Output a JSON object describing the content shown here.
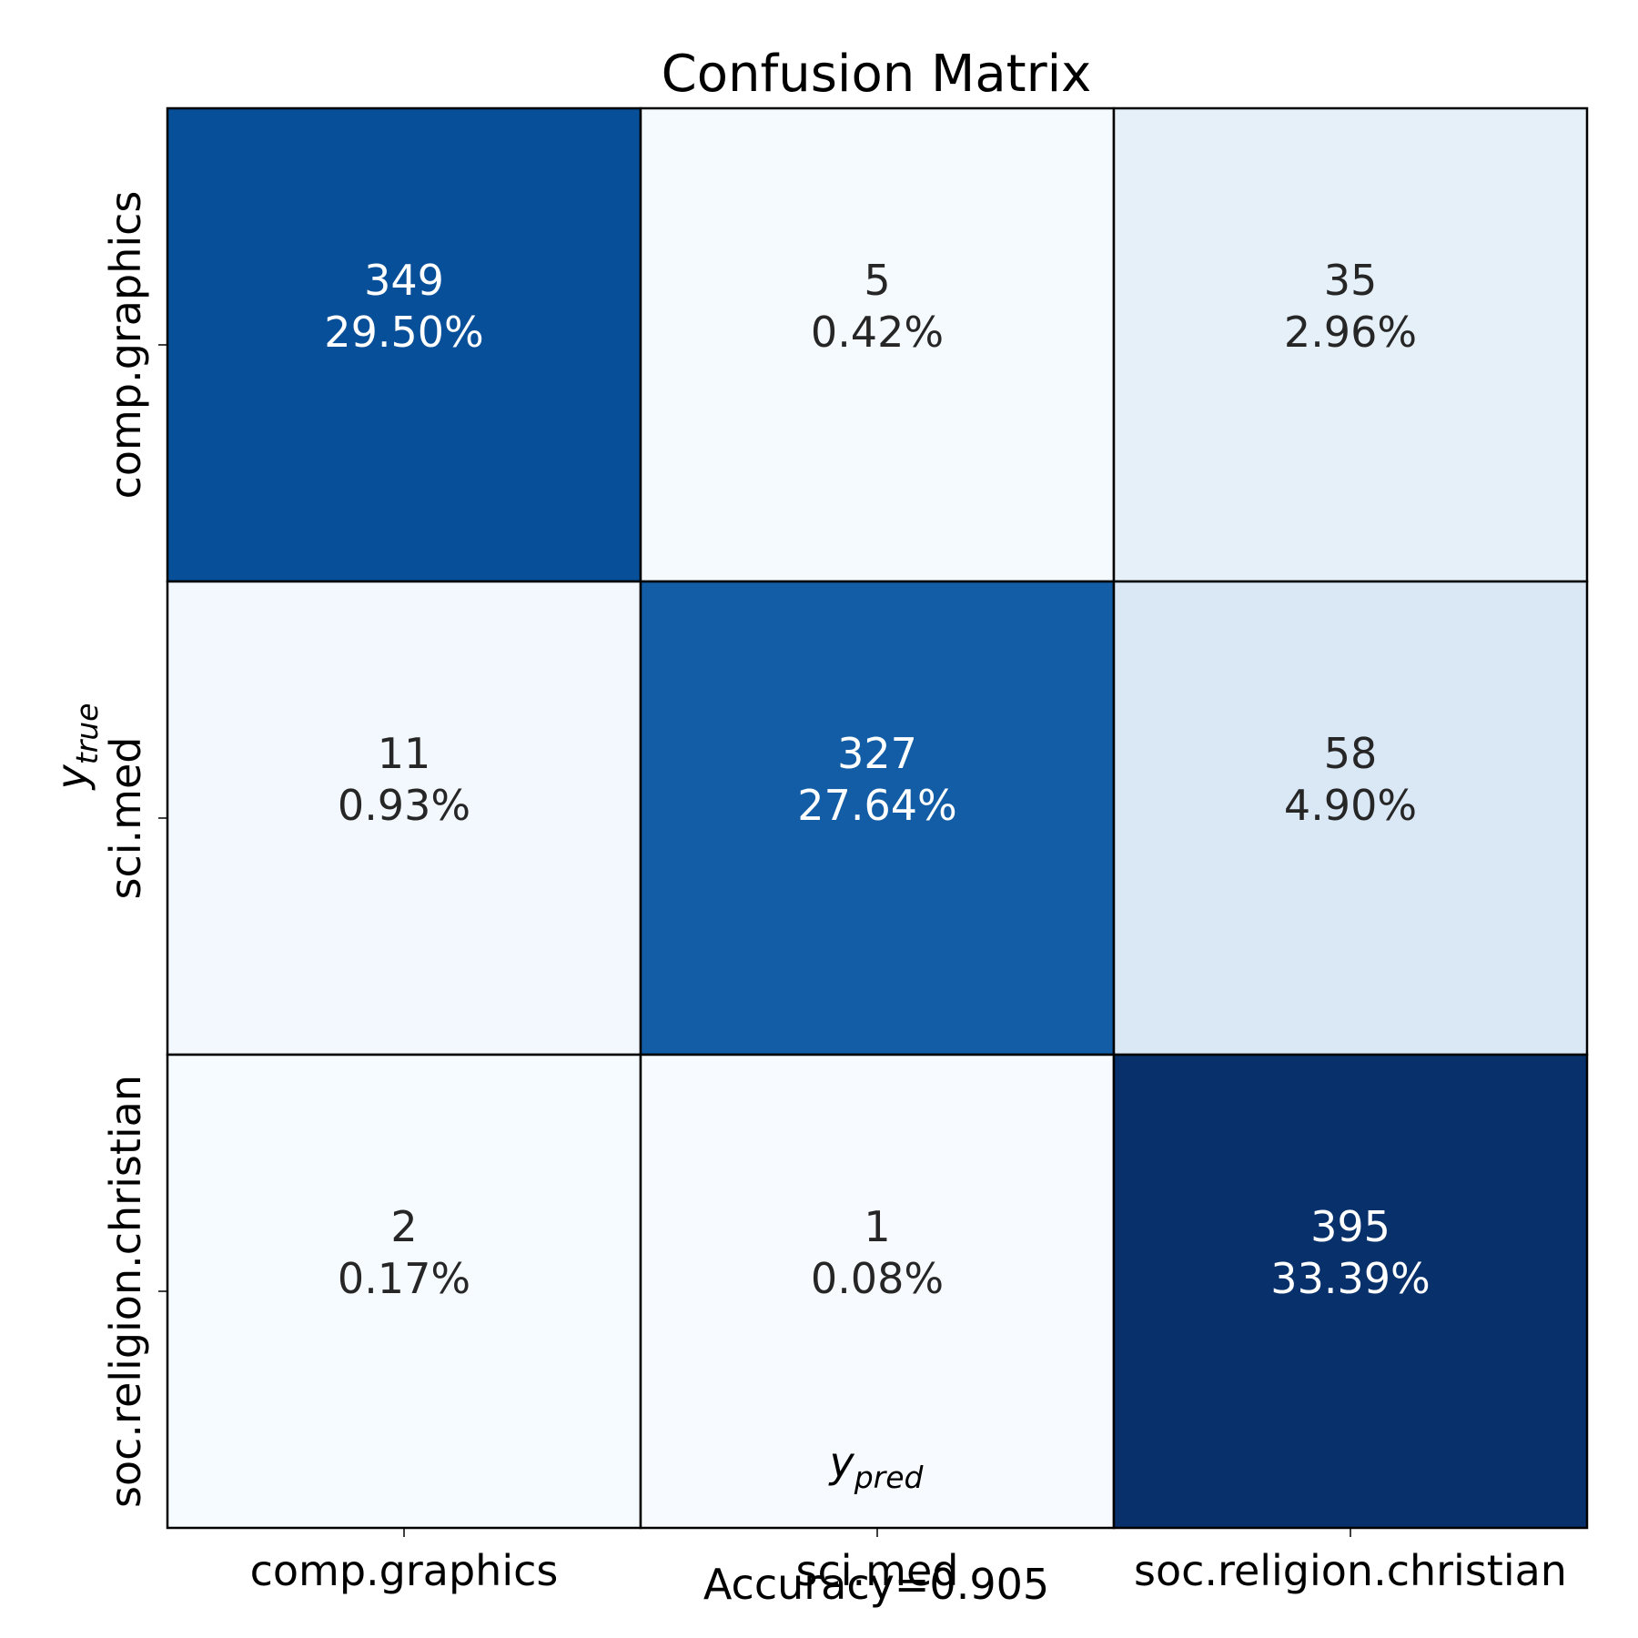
{
  "chart_data": {
    "type": "heatmap",
    "title": "Confusion Matrix",
    "xlabel": {
      "base": "y",
      "sub": "pred"
    },
    "ylabel": {
      "base": "y",
      "sub": "true"
    },
    "x_categories": [
      "comp.graphics",
      "sci.med",
      "soc.religion.christian"
    ],
    "y_categories": [
      "comp.graphics",
      "sci.med",
      "soc.religion.christian"
    ],
    "values": [
      [
        349,
        5,
        35
      ],
      [
        11,
        327,
        58
      ],
      [
        2,
        1,
        395
      ]
    ],
    "percent_labels": [
      [
        "29.50%",
        "0.42%",
        "2.96%"
      ],
      [
        "0.93%",
        "27.64%",
        "4.90%"
      ],
      [
        "0.17%",
        "0.08%",
        "33.39%"
      ]
    ],
    "colormap": "Blues",
    "footer": "Accuracy=0.905"
  }
}
